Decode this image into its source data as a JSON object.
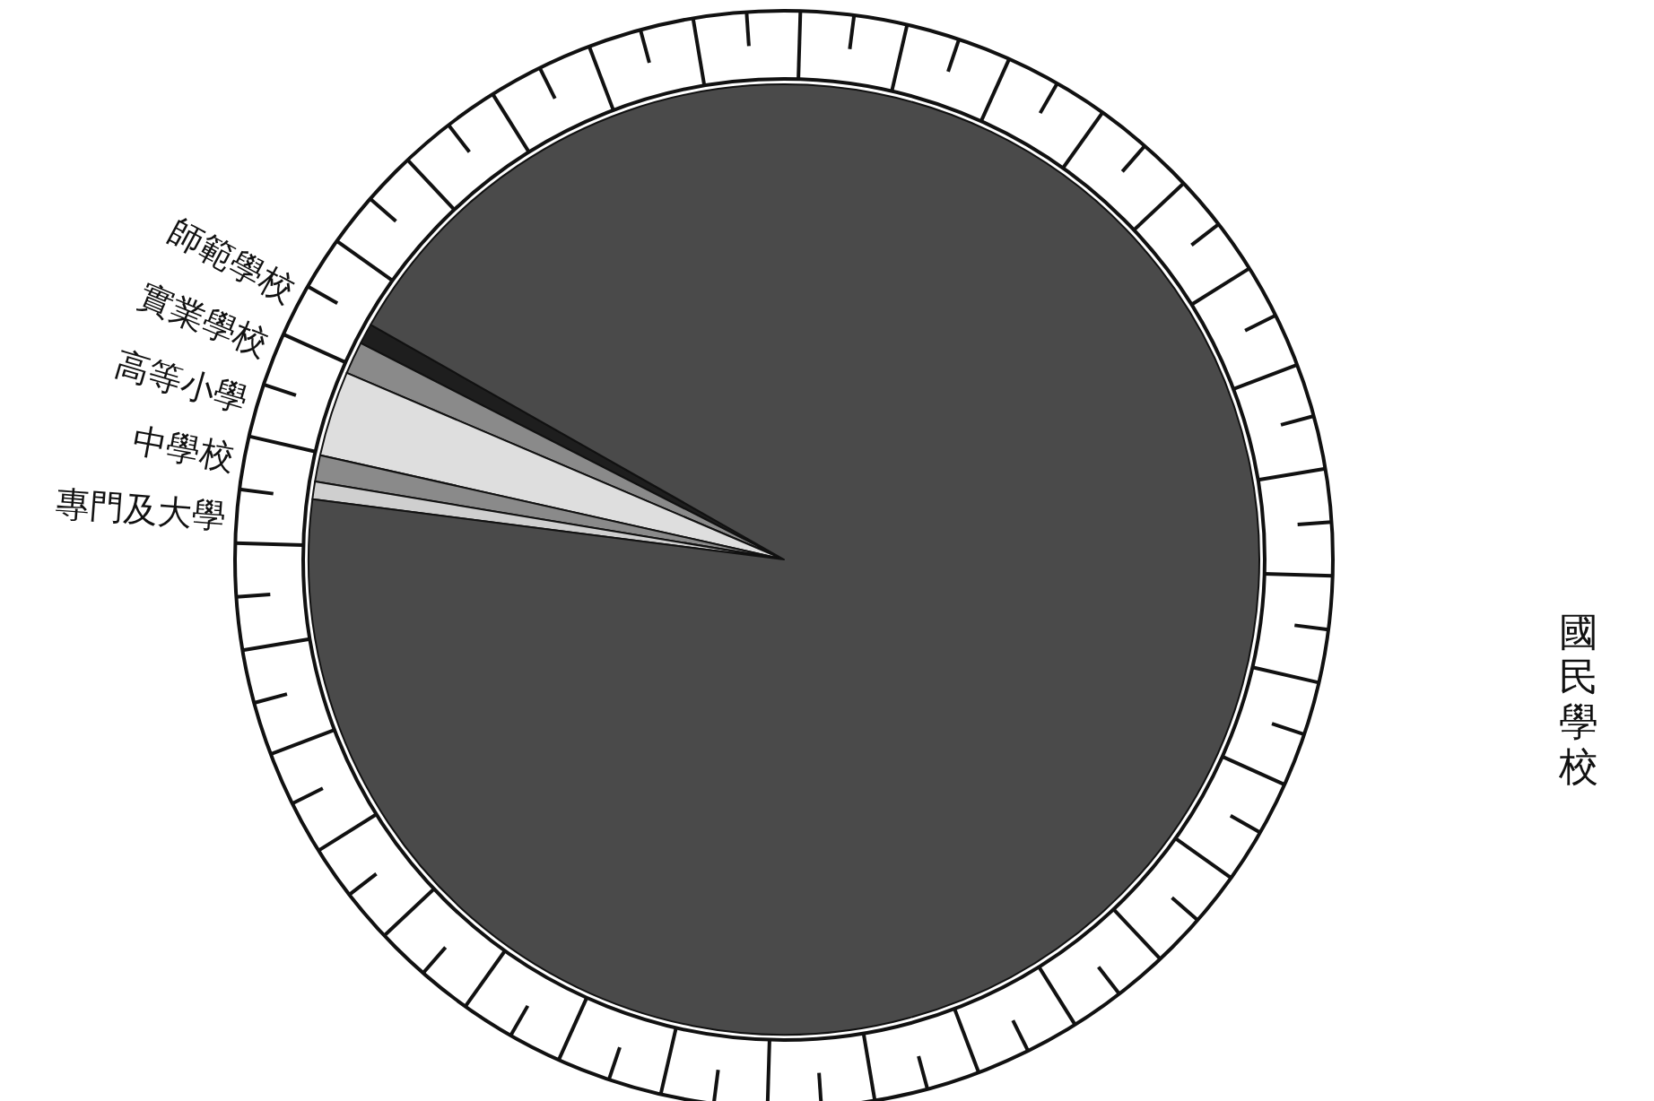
{
  "chart_data": {
    "type": "pie",
    "legend": "left",
    "categories": [
      "師範學校",
      "實業學校",
      "高等小學",
      "中學校",
      "專門及大學",
      "國民學校"
    ],
    "values": [
      0.7,
      1.1,
      2.9,
      0.9,
      0.6,
      93.8
    ],
    "colors": [
      "#1e1e1e",
      "#8a8a8a",
      "#dedede",
      "#8a8a8a",
      "#cfcfcf",
      "#4a4a4a"
    ]
  }
}
